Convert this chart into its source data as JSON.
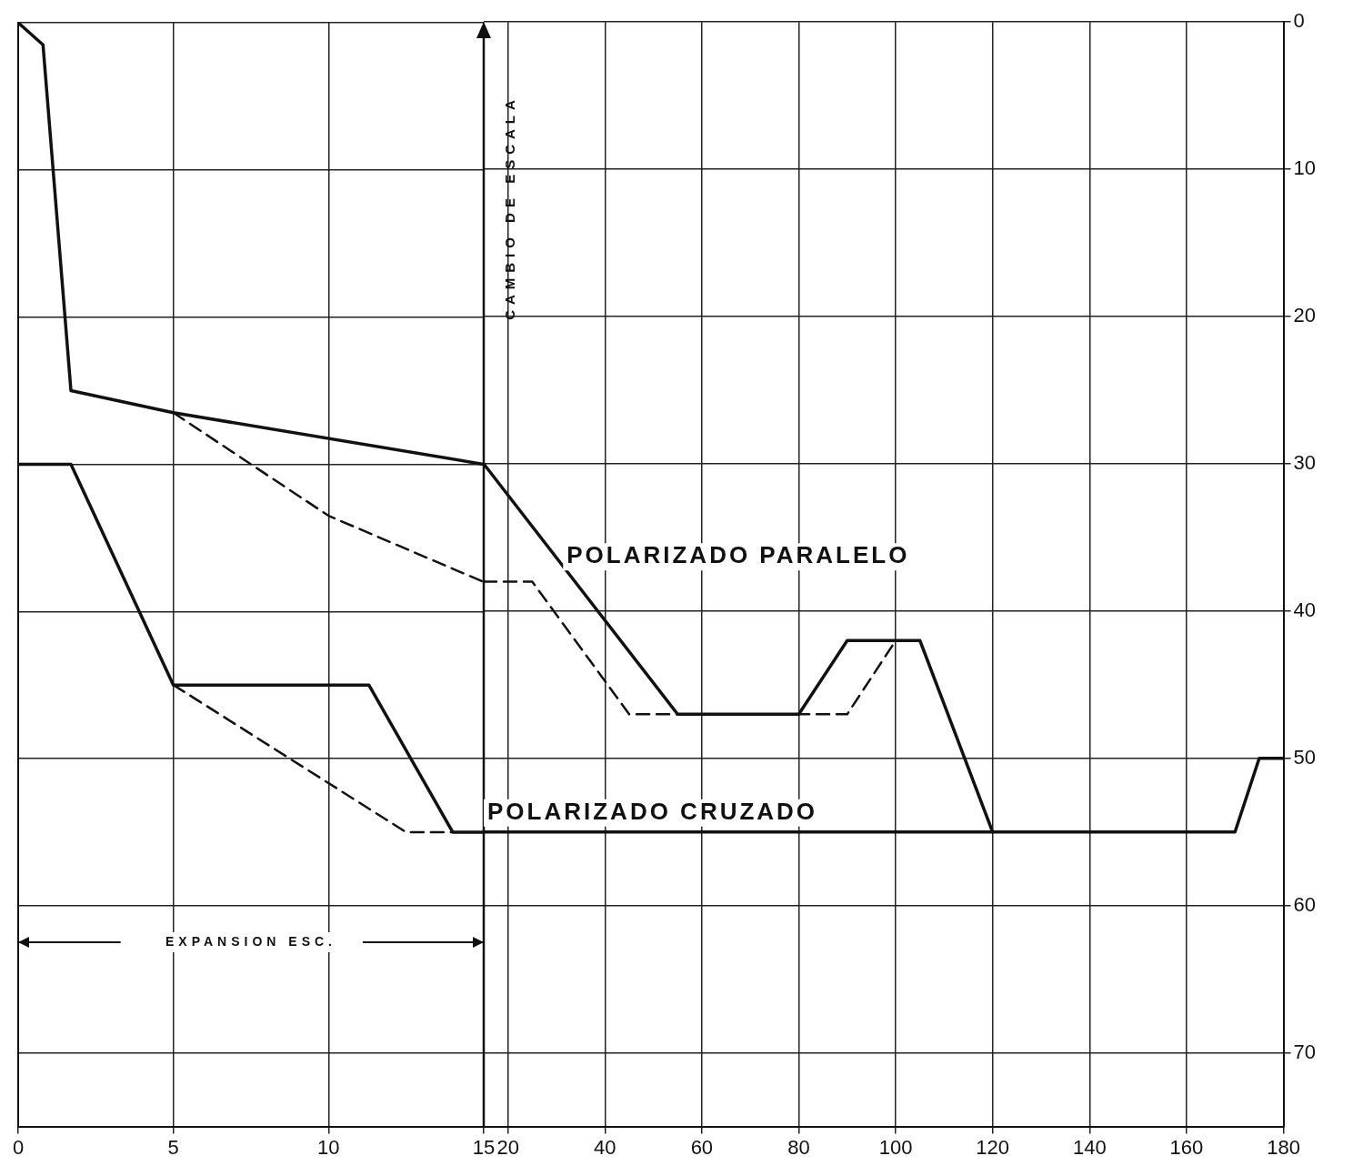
{
  "chart_data": [
    {
      "type": "line",
      "xlim": [
        0,
        15
      ],
      "xticks": [
        0,
        5,
        10,
        15
      ],
      "ylim": [
        75,
        0
      ],
      "yticks": [
        0,
        10,
        20,
        30,
        40,
        50,
        60,
        70
      ],
      "grid": true,
      "legend": false,
      "marker": "none",
      "tick_labels": "x",
      "series": [
        {
          "color": "#111111",
          "line_style": "solid",
          "x": [
            0,
            0.8,
            1.7,
            5,
            15
          ],
          "values": [
            0,
            1.5,
            25,
            26.5,
            30
          ]
        },
        {
          "color": "#111111",
          "line_style": "dashed",
          "x": [
            5,
            10,
            15
          ],
          "values": [
            26.5,
            33.5,
            38
          ]
        },
        {
          "color": "#111111",
          "line_style": "solid",
          "x": [
            0,
            1.7,
            5,
            11.3,
            14,
            15
          ],
          "values": [
            30,
            30,
            45,
            45,
            55,
            55
          ]
        },
        {
          "color": "#111111",
          "line_style": "dashed",
          "x": [
            5,
            12.5,
            14
          ],
          "values": [
            45,
            55,
            55
          ]
        }
      ],
      "annotations": [
        "EXPANSION ESC."
      ]
    },
    {
      "type": "line",
      "xlim": [
        15,
        180
      ],
      "xticks": [
        20,
        40,
        60,
        80,
        100,
        120,
        140,
        160,
        180
      ],
      "ylim": [
        75,
        0
      ],
      "yticks": [
        0,
        10,
        20,
        30,
        40,
        50,
        60,
        70
      ],
      "grid": true,
      "legend": false,
      "marker": "none",
      "series": [
        {
          "name": "POLARIZADO PARALELO",
          "color": "#111111",
          "line_style": "solid",
          "x": [
            15,
            55,
            80,
            90,
            105,
            120
          ],
          "values": [
            30,
            47,
            47,
            42,
            42,
            55
          ]
        },
        {
          "color": "#111111",
          "line_style": "dashed",
          "x": [
            15,
            25,
            45,
            90,
            100
          ],
          "values": [
            38,
            38,
            47,
            47,
            42
          ]
        },
        {
          "name": "POLARIZADO CRUZADO",
          "color": "#111111",
          "line_style": "solid",
          "x": [
            15,
            170,
            175,
            180
          ],
          "values": [
            55,
            55,
            50,
            50
          ]
        }
      ],
      "ref_lines": [
        {
          "axis": "x",
          "value": 15,
          "label": "CAMBIO DE ESCALA"
        }
      ]
    }
  ]
}
